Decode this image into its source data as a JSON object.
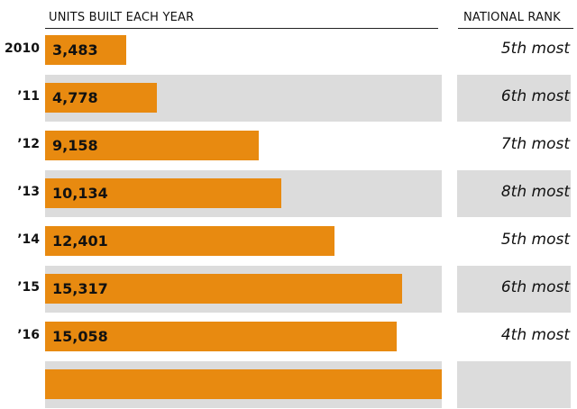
{
  "chart_data": {
    "type": "bar",
    "title": "UNITS BUILT EACH YEAR",
    "rank_header": "NATIONAL RANK",
    "categories": [
      "2010",
      "’11",
      "’12",
      "’13",
      "’14",
      "’15",
      "’16",
      ""
    ],
    "values": [
      3483,
      4778,
      9158,
      10134,
      12401,
      15317,
      15058,
      17000
    ],
    "value_labels": [
      "3,483",
      "4,778",
      "9,158",
      "10,134",
      "12,401",
      "15,317",
      "15,058",
      ""
    ],
    "ranks": [
      "5th most",
      "6th most",
      "7th most",
      "8th most",
      "5th most",
      "6th most",
      "4th most",
      ""
    ],
    "xlim": [
      0,
      17000
    ],
    "bar_color": "#e88a10",
    "shade_color": "#dcdcdc"
  }
}
